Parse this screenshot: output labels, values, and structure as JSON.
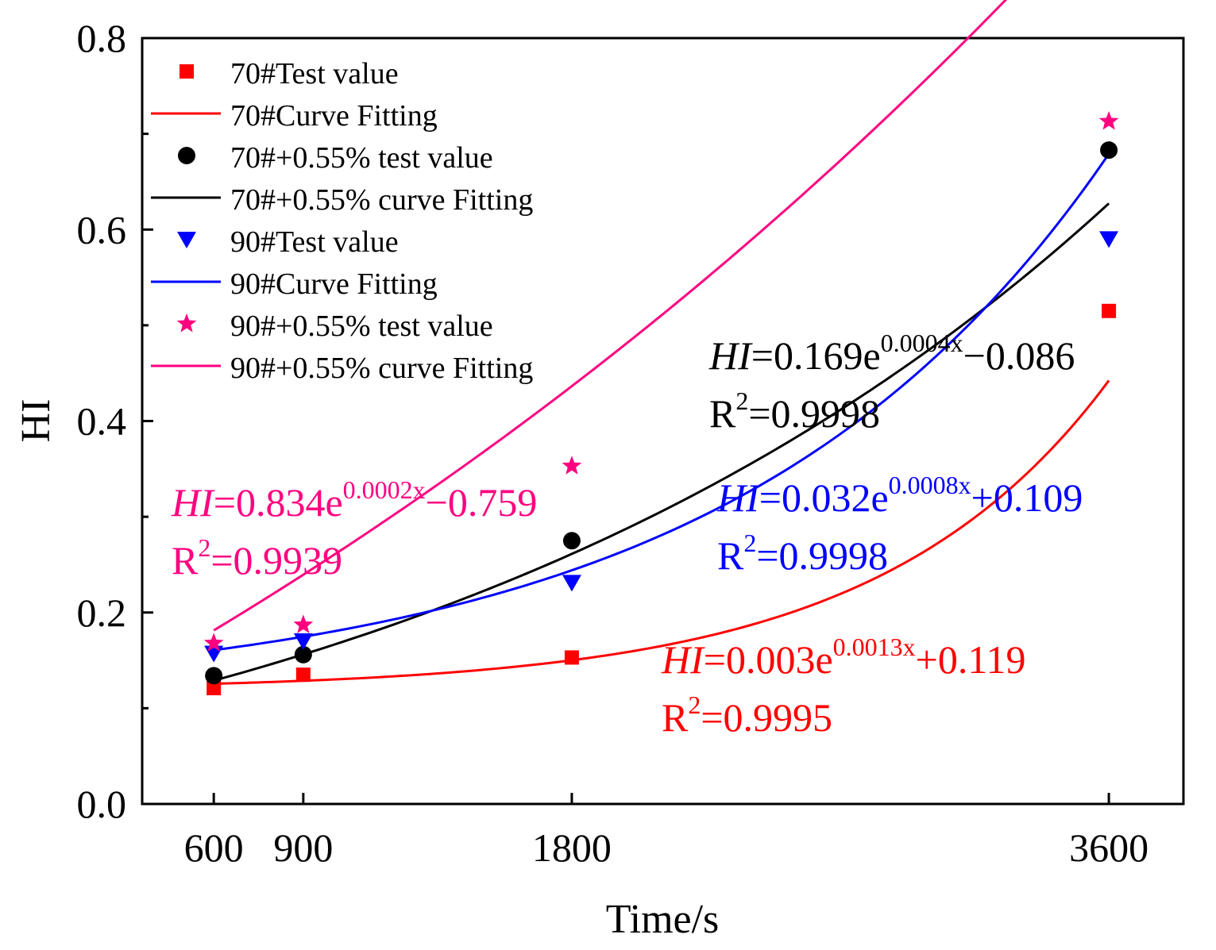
{
  "chart_data": {
    "type": "scatter",
    "xlabel": "Time/s",
    "ylabel": "HI",
    "xlim": [
      360,
      3850
    ],
    "ylim": [
      0.0,
      0.8
    ],
    "x_ticks": [
      600,
      900,
      1800,
      3600
    ],
    "x_tick_labels": [
      "600",
      "900",
      "1800",
      "3600"
    ],
    "y_ticks": [
      0.0,
      0.2,
      0.4,
      0.6,
      0.8
    ],
    "y_tick_labels": [
      "0.0",
      "0.2",
      "0.4",
      "0.6",
      "0.8"
    ],
    "grid": false,
    "legend_position": "top-left",
    "legend": [
      {
        "label": "70#Test value",
        "kind": "marker",
        "marker": "square",
        "color": "#ff0000"
      },
      {
        "label": "70#Curve Fitting",
        "kind": "line",
        "color": "#ff0000"
      },
      {
        "label": "70#+0.55% test value",
        "kind": "marker",
        "marker": "circle",
        "color": "#000000"
      },
      {
        "label": "70#+0.55% curve Fitting",
        "kind": "line",
        "color": "#000000"
      },
      {
        "label": "90#Test value",
        "kind": "marker",
        "marker": "triangle-down",
        "color": "#0000ff"
      },
      {
        "label": "90#Curve Fitting",
        "kind": "line",
        "color": "#0000ff"
      },
      {
        "label": "90#+0.55% test value",
        "kind": "marker",
        "marker": "star",
        "color": "#ff0080"
      },
      {
        "label": "90#+0.55% curve Fitting",
        "kind": "line",
        "color": "#ff0080"
      }
    ],
    "series": [
      {
        "name": "70#",
        "color": "#ff0000",
        "marker": "square",
        "x": [
          600,
          900,
          1800,
          3600
        ],
        "values": [
          0.121,
          0.135,
          0.153,
          0.515
        ],
        "fit": {
          "a": 0.003,
          "b": 0.0013,
          "c": 0.119
        }
      },
      {
        "name": "70#+0.55%",
        "color": "#000000",
        "marker": "circle",
        "x": [
          600,
          900,
          1800,
          3600
        ],
        "values": [
          0.134,
          0.156,
          0.275,
          0.683
        ],
        "fit": {
          "a": 0.169,
          "b": 0.0004,
          "c": -0.086
        }
      },
      {
        "name": "90#",
        "color": "#0000ff",
        "marker": "triangle-down",
        "x": [
          600,
          900,
          1800,
          3600
        ],
        "values": [
          0.157,
          0.17,
          0.231,
          0.59
        ],
        "fit": {
          "a": 0.032,
          "b": 0.0008,
          "c": 0.109
        }
      },
      {
        "name": "90#+0.55%",
        "color": "#ff0080",
        "marker": "star",
        "x": [
          600,
          900,
          1800,
          3600
        ],
        "values": [
          0.168,
          0.187,
          0.353,
          0.713
        ],
        "fit": {
          "a": 0.834,
          "b": 0.0002,
          "c": -0.759
        }
      }
    ],
    "annotations": [
      {
        "series": "70#",
        "prefix": "HI",
        "eq_main": "=0.003e",
        "eq_exp": "0.0013x",
        "eq_tail": "+0.119",
        "r2_label": "R",
        "r2_sup": "2",
        "r2_value": "=0.9995",
        "color": "#ff0000"
      },
      {
        "series": "70#+0.55%",
        "prefix": "HI",
        "eq_main": "=0.169e",
        "eq_exp": "0.0004x",
        "eq_tail": "−0.086",
        "r2_label": "R",
        "r2_sup": "2",
        "r2_value": "=0.9998",
        "color": "#000000"
      },
      {
        "series": "90#",
        "prefix": "HI",
        "eq_main": "=0.032e",
        "eq_exp": "0.0008x",
        "eq_tail": "+0.109",
        "r2_label": "R",
        "r2_sup": "2",
        "r2_value": "=0.9998",
        "color": "#0000ff"
      },
      {
        "series": "90#+0.55%",
        "prefix": "HI",
        "eq_main": "=0.834e",
        "eq_exp": "0.0002x",
        "eq_tail": "−0.759",
        "r2_label": "R",
        "r2_sup": "2",
        "r2_value": "=0.9939",
        "color": "#ff0080"
      }
    ]
  }
}
